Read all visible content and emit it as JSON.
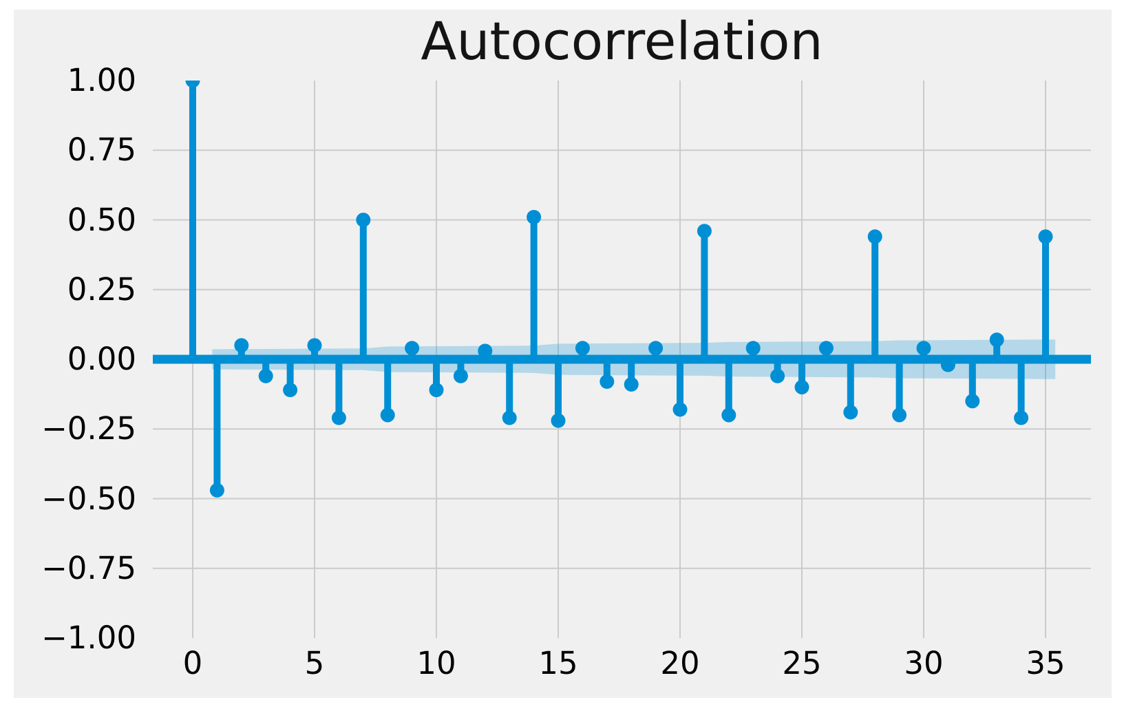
{
  "figure": {
    "page_background": "#ffffff",
    "background": "#f0f0f0",
    "accent_color": "#008fd5",
    "grid_color": "#cbcbcb",
    "band_color": "rgba(0,143,213,0.25)",
    "title_color": "#141414",
    "tick_color": "#000000"
  },
  "chart_data": {
    "type": "stem",
    "title": "Autocorrelation",
    "xlabel": "",
    "ylabel": "",
    "grid": true,
    "legend": "none",
    "xlim": [
      -1.6,
      36.9
    ],
    "ylim": [
      -1.0,
      1.0
    ],
    "x_ticks": [
      0,
      5,
      10,
      15,
      20,
      25,
      30,
      35
    ],
    "x_tick_labels": [
      "0",
      "5",
      "10",
      "15",
      "20",
      "25",
      "30",
      "35"
    ],
    "y_ticks": [
      1.0,
      0.75,
      0.5,
      0.25,
      0.0,
      -0.25,
      -0.5,
      -0.75,
      -1.0
    ],
    "y_tick_labels": [
      "1.00",
      "0.75",
      "0.50",
      "0.25",
      "0.00",
      "−0.25",
      "−0.50",
      "−0.75",
      "−1.00"
    ],
    "lags": [
      0,
      1,
      2,
      3,
      4,
      5,
      6,
      7,
      8,
      9,
      10,
      11,
      12,
      13,
      14,
      15,
      16,
      17,
      18,
      19,
      20,
      21,
      22,
      23,
      24,
      25,
      26,
      27,
      28,
      29,
      30,
      31,
      32,
      33,
      34,
      35
    ],
    "values": [
      1.0,
      -0.47,
      0.05,
      -0.06,
      -0.11,
      0.05,
      -0.21,
      0.5,
      -0.2,
      0.04,
      -0.11,
      -0.06,
      0.03,
      -0.21,
      0.51,
      -0.22,
      0.04,
      -0.08,
      -0.09,
      0.04,
      -0.18,
      0.46,
      -0.2,
      0.04,
      -0.06,
      -0.1,
      0.04,
      -0.19,
      0.44,
      -0.2,
      0.04,
      -0.02,
      -0.15,
      0.07,
      -0.21,
      0.44
    ],
    "confidence_band": {
      "lags": [
        0.8,
        7,
        8,
        14,
        15,
        21,
        22,
        28,
        29,
        35.4
      ],
      "half_widths": [
        0.036,
        0.039,
        0.046,
        0.049,
        0.056,
        0.059,
        0.062,
        0.065,
        0.068,
        0.071
      ]
    }
  }
}
